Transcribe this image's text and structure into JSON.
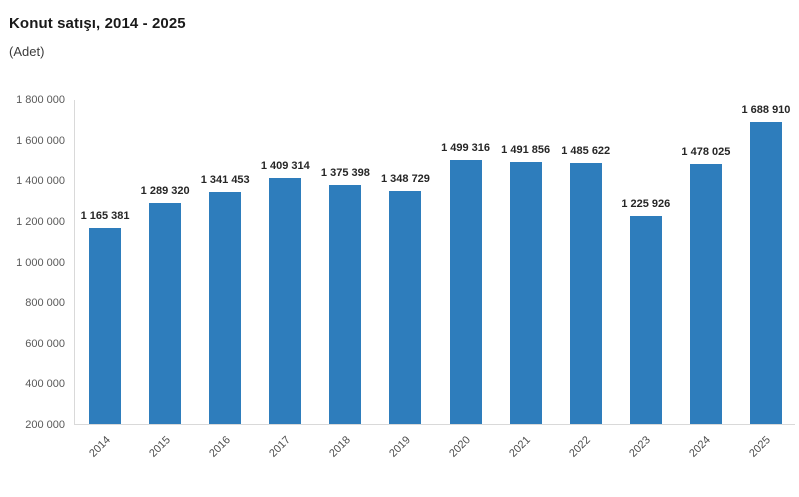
{
  "chart_data": {
    "type": "bar",
    "title": "Konut satışı, 2014 - 2025",
    "subtitle": "(Adet)",
    "categories": [
      "2014",
      "2015",
      "2016",
      "2017",
      "2018",
      "2019",
      "2020",
      "2021",
      "2022",
      "2023",
      "2024",
      "2025"
    ],
    "values": [
      1165381,
      1289320,
      1341453,
      1409314,
      1375398,
      1348729,
      1499316,
      1491856,
      1485622,
      1225926,
      1478025,
      1688910
    ],
    "value_labels": [
      "1 165 381",
      "1 289 320",
      "1 341 453",
      "1 409 314",
      "1 375 398",
      "1 348 729",
      "1 499 316",
      "1 491 856",
      "1 485 622",
      "1 225 926",
      "1 478 025",
      "1 688 910"
    ],
    "xlabel": "",
    "ylabel": "",
    "ylim": [
      200000,
      1800000
    ],
    "ytick_step": 200000,
    "ytick_labels": [
      "200 000",
      "400 000",
      "600 000",
      "800 000",
      "1 000 000",
      "1 200 000",
      "1 400 000",
      "1 600 000",
      "1 800 000"
    ],
    "grid": false,
    "legend": false,
    "data_labels": true,
    "colors": {
      "bar": "#2E7DBC",
      "axis_line": "#d9d9d9",
      "title_text": "#1a1a1a",
      "subtitle_text": "#3c3c3c",
      "tick_text": "#595959",
      "value_label_text": "#262626",
      "background": "#ffffff"
    }
  }
}
